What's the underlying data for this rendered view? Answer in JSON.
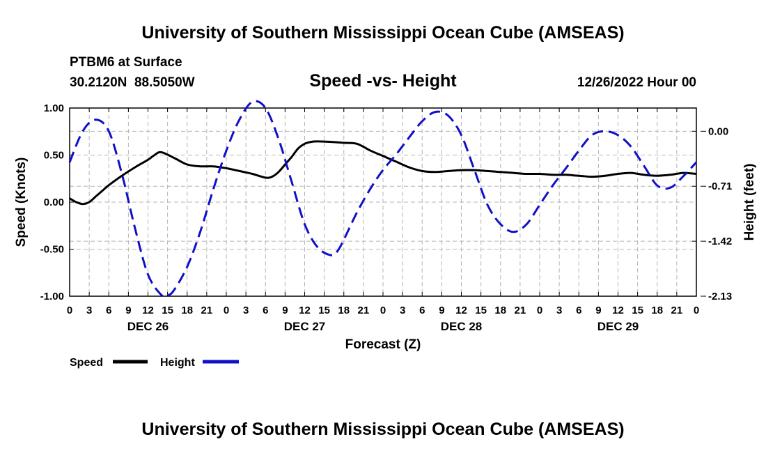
{
  "header": {
    "title": "University of Southern Mississippi Ocean Cube (AMSEAS)",
    "station": "PTBM6 at Surface",
    "location": "30.2120N  88.5050W",
    "subtitle": "Speed -vs- Height",
    "timestamp": "12/26/2022 Hour 00"
  },
  "footer": {
    "title": "University of Southern Mississippi Ocean Cube (AMSEAS)"
  },
  "legend": {
    "items": [
      {
        "label": "Speed",
        "color": "#000000",
        "dashed": false
      },
      {
        "label": "Height",
        "color": "#1010c8",
        "dashed": true
      }
    ]
  },
  "chart_data": {
    "type": "line",
    "title": "Speed -vs- Height",
    "xlabel": "Forecast (Z)",
    "ylabel": "Speed (Knots)",
    "y2label": "Height (feet)",
    "x_range_hours": [
      0,
      96
    ],
    "ylim": [
      -1.0,
      1.0
    ],
    "y2lim": [
      -2.13,
      0.3
    ],
    "yticks": [
      "1.00",
      "0.50",
      "0.00",
      "-0.50",
      "-1.00"
    ],
    "ytick_values": [
      1.0,
      0.5,
      0.0,
      -0.5,
      -1.0
    ],
    "y2ticks": [
      "0.00",
      "-0.71",
      "-1.42",
      "-2.13"
    ],
    "y2tick_values": [
      0.0,
      -0.71,
      -1.42,
      -2.13
    ],
    "xtick_hours": [
      0,
      3,
      6,
      9,
      12,
      15,
      18,
      21,
      24,
      27,
      30,
      33,
      36,
      39,
      42,
      45,
      48,
      51,
      54,
      57,
      60,
      63,
      66,
      69,
      72,
      75,
      78,
      81,
      84,
      87,
      90,
      93,
      96
    ],
    "xtick_labels": [
      "0",
      "3",
      "6",
      "9",
      "12",
      "15",
      "18",
      "21",
      "0",
      "3",
      "6",
      "9",
      "12",
      "15",
      "18",
      "21",
      "0",
      "3",
      "6",
      "9",
      "12",
      "15",
      "18",
      "21",
      "0",
      "3",
      "6",
      "9",
      "12",
      "15",
      "18",
      "21",
      "0"
    ],
    "day_labels": [
      {
        "label": "DEC 26",
        "hour": 12
      },
      {
        "label": "DEC 27",
        "hour": 36
      },
      {
        "label": "DEC 28",
        "hour": 60
      },
      {
        "label": "DEC 29",
        "hour": 84
      }
    ],
    "grid": true,
    "series": [
      {
        "name": "Speed",
        "axis": "left",
        "color": "#000000",
        "dashed": false,
        "x": [
          0,
          1,
          2,
          3,
          4,
          5,
          6,
          8,
          10,
          12,
          13,
          14,
          16,
          18,
          20,
          22,
          24,
          26,
          28,
          30,
          31,
          32,
          33,
          34,
          35,
          36,
          37,
          38,
          40,
          42,
          44,
          46,
          48,
          50,
          52,
          54,
          56,
          58,
          60,
          62,
          64,
          66,
          68,
          70,
          72,
          74,
          76,
          78,
          80,
          82,
          84,
          86,
          88,
          90,
          92,
          94,
          96
        ],
        "values": [
          0.04,
          0.0,
          -0.02,
          0.0,
          0.06,
          0.12,
          0.18,
          0.28,
          0.37,
          0.45,
          0.5,
          0.53,
          0.47,
          0.4,
          0.38,
          0.38,
          0.36,
          0.33,
          0.3,
          0.26,
          0.27,
          0.32,
          0.4,
          0.48,
          0.57,
          0.62,
          0.64,
          0.645,
          0.64,
          0.63,
          0.62,
          0.55,
          0.49,
          0.43,
          0.37,
          0.33,
          0.32,
          0.33,
          0.34,
          0.34,
          0.33,
          0.32,
          0.31,
          0.3,
          0.3,
          0.29,
          0.29,
          0.28,
          0.27,
          0.28,
          0.3,
          0.31,
          0.29,
          0.28,
          0.29,
          0.31,
          0.3
        ]
      },
      {
        "name": "Height",
        "axis": "right",
        "color": "#1010c8",
        "dashed": true,
        "x": [
          0,
          2,
          4,
          6,
          8,
          10,
          12,
          14,
          15,
          16,
          18,
          20,
          22,
          24,
          26,
          28,
          30,
          32,
          34,
          36,
          38,
          40,
          41,
          42,
          44,
          46,
          48,
          50,
          52,
          54,
          56,
          58,
          60,
          62,
          64,
          66,
          68,
          70,
          72,
          74,
          76,
          78,
          80,
          82,
          84,
          86,
          88,
          90,
          92,
          94,
          96
        ],
        "values": [
          -0.4,
          0.0,
          0.15,
          0.0,
          -0.55,
          -1.25,
          -1.85,
          -2.11,
          -2.12,
          -2.05,
          -1.75,
          -1.3,
          -0.75,
          -0.25,
          0.15,
          0.38,
          0.3,
          -0.1,
          -0.65,
          -1.2,
          -1.5,
          -1.6,
          -1.55,
          -1.4,
          -1.05,
          -0.75,
          -0.5,
          -0.3,
          -0.08,
          0.13,
          0.25,
          0.2,
          -0.05,
          -0.5,
          -0.95,
          -1.2,
          -1.3,
          -1.2,
          -0.95,
          -0.7,
          -0.48,
          -0.25,
          -0.05,
          0.0,
          -0.05,
          -0.2,
          -0.45,
          -0.7,
          -0.73,
          -0.58,
          -0.4
        ]
      }
    ]
  }
}
